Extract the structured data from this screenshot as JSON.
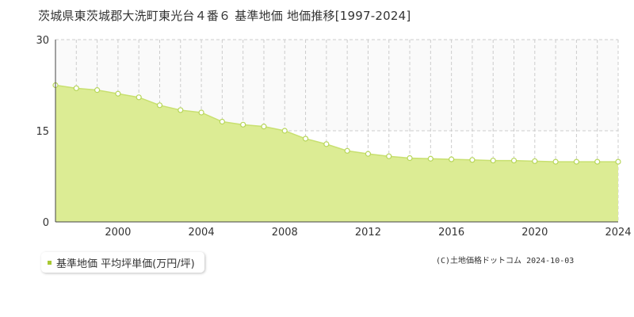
{
  "title": "茨城県東茨城郡大洗町東光台４番６ 基準地価 地価推移[1997-2024]",
  "copyright": "(C)土地価格ドットコム 2024-10-03",
  "legend": {
    "label": "基準地価 平均坪単価(万円/坪)"
  },
  "colors": {
    "fill": "#dcec94",
    "line": "#c8e070",
    "point_fill": "#ffffff",
    "point_stroke": "#b7d65a",
    "upper_band": "#fafafa",
    "legend_marker": "#a8c832"
  },
  "chart_data": {
    "type": "area",
    "title": "茨城県東茨城郡大洗町東光台４番６ 基準地価 地価推移[1997-2024]",
    "x": [
      1997,
      1998,
      1999,
      2000,
      2001,
      2002,
      2003,
      2004,
      2005,
      2006,
      2007,
      2008,
      2009,
      2010,
      2011,
      2012,
      2013,
      2014,
      2015,
      2016,
      2017,
      2018,
      2019,
      2020,
      2021,
      2022,
      2023,
      2024
    ],
    "series": [
      {
        "name": "基準地価 平均坪単価(万円/坪)",
        "values": [
          22.5,
          22.0,
          21.7,
          21.1,
          20.5,
          19.2,
          18.4,
          18.0,
          16.5,
          16.0,
          15.7,
          15.0,
          13.7,
          12.8,
          11.7,
          11.2,
          10.8,
          10.5,
          10.4,
          10.3,
          10.2,
          10.1,
          10.1,
          10.0,
          9.9,
          9.9,
          9.9,
          9.9
        ]
      }
    ],
    "xlim": [
      1997,
      2024
    ],
    "ylim": [
      0,
      30
    ],
    "x_ticks": [
      2000,
      2004,
      2008,
      2012,
      2016,
      2020,
      2024
    ],
    "y_ticks": [
      0,
      15,
      30
    ],
    "grid": true,
    "legend_position": "bottom-left"
  }
}
